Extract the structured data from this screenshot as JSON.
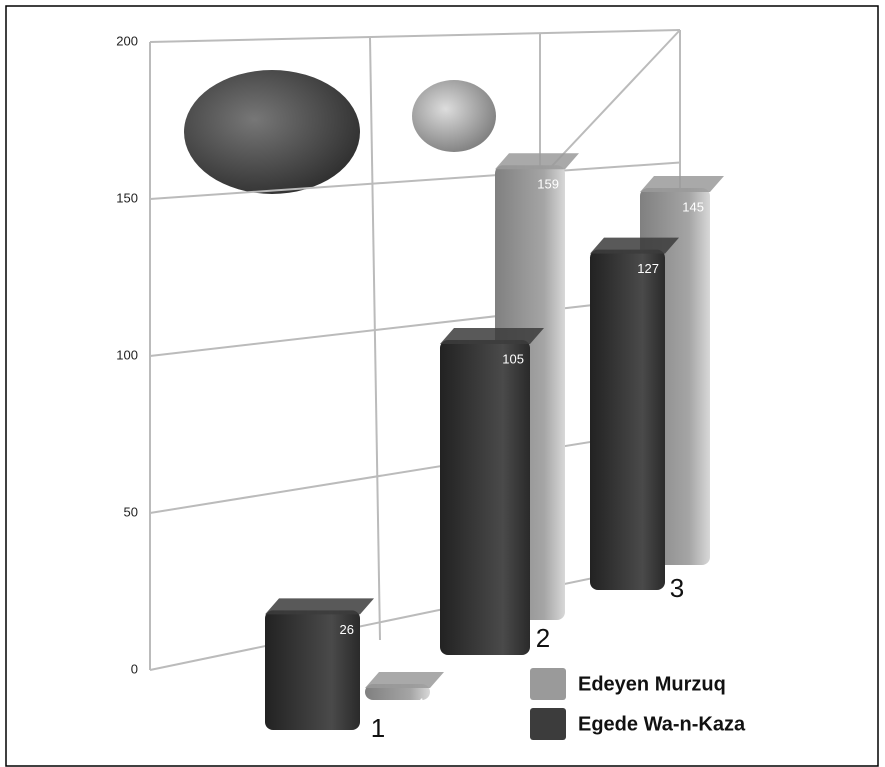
{
  "chart_data": {
    "type": "bar3d",
    "categories": [
      "1",
      "2",
      "3"
    ],
    "series": [
      {
        "name": "Edeyen Murzuq",
        "color": "#9a9a9a",
        "values": [
          4,
          159,
          145
        ]
      },
      {
        "name": "Egede Wa-n-Kaza",
        "color": "#3c3c3c",
        "values": [
          26,
          105,
          127
        ]
      }
    ],
    "ylim": [
      0,
      200
    ],
    "yticks": [
      0,
      50,
      100,
      150,
      200
    ],
    "grid": true
  }
}
